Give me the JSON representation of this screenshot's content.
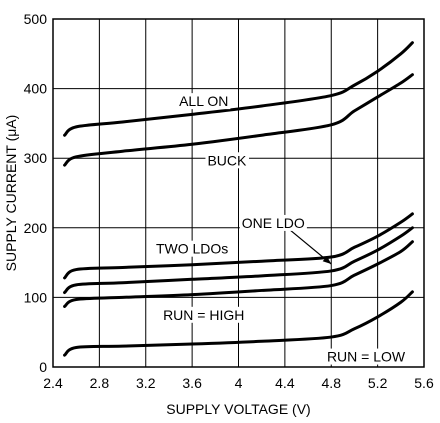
{
  "chart_data": {
    "type": "line",
    "title": "",
    "xlabel": "SUPPLY VOLTAGE (V)",
    "ylabel": "SUPPLY CURRENT (μA)",
    "xlim": [
      2.4,
      5.6
    ],
    "ylim": [
      0,
      500
    ],
    "xticks": [
      "2.4",
      "2.8",
      "3.2",
      "3.6",
      "4",
      "4.4",
      "4.8",
      "5.2",
      "5.6"
    ],
    "yticks": [
      "0",
      "100",
      "200",
      "300",
      "400",
      "500"
    ],
    "grid": true,
    "series": [
      {
        "name": "ALL ON",
        "x": [
          2.5,
          2.6,
          3.0,
          3.6,
          4.2,
          4.8,
          5.0,
          5.2,
          5.4,
          5.5
        ],
        "y": [
          333,
          345,
          352,
          363,
          375,
          390,
          405,
          425,
          450,
          466
        ]
      },
      {
        "name": "BUCK",
        "x": [
          2.5,
          2.6,
          3.0,
          3.6,
          4.2,
          4.8,
          5.0,
          5.2,
          5.4,
          5.5
        ],
        "y": [
          290,
          302,
          310,
          320,
          333,
          348,
          368,
          388,
          408,
          420
        ]
      },
      {
        "name": "ONE LDO",
        "x": [
          2.5,
          2.6,
          3.0,
          3.6,
          4.2,
          4.8,
          5.0,
          5.2,
          5.4,
          5.5
        ],
        "y": [
          128,
          140,
          143,
          147,
          152,
          158,
          172,
          188,
          208,
          220
        ]
      },
      {
        "name": "TWO LDOs",
        "x": [
          2.5,
          2.6,
          3.0,
          3.6,
          4.2,
          4.8,
          5.0,
          5.2,
          5.4,
          5.5
        ],
        "y": [
          107,
          118,
          121,
          126,
          131,
          138,
          152,
          168,
          188,
          200
        ]
      },
      {
        "name": "RUN = HIGH",
        "x": [
          2.5,
          2.6,
          3.0,
          3.6,
          4.2,
          4.8,
          5.0,
          5.2,
          5.4,
          5.5
        ],
        "y": [
          87,
          97,
          100,
          104,
          110,
          117,
          132,
          148,
          166,
          180
        ]
      },
      {
        "name": "RUN = LOW",
        "x": [
          2.5,
          2.6,
          3.0,
          3.6,
          4.2,
          4.8,
          5.0,
          5.2,
          5.4,
          5.5
        ],
        "y": [
          17,
          28,
          30,
          33,
          37,
          43,
          55,
          72,
          93,
          108
        ]
      }
    ],
    "annotations": [
      {
        "text": "ALL ON",
        "x": 3.7,
        "y": 382
      },
      {
        "text": "BUCK",
        "x": 3.9,
        "y": 297
      },
      {
        "text": "ONE LDO",
        "x": 4.3,
        "y": 207
      },
      {
        "text": "TWO LDOs",
        "x": 3.6,
        "y": 170
      },
      {
        "text": "RUN = HIGH",
        "x": 3.7,
        "y": 75
      },
      {
        "text": "RUN = LOW",
        "x": 5.1,
        "y": 15
      }
    ],
    "leaders": [
      {
        "from": [
          4.4,
          203
        ],
        "to": [
          4.8,
          148
        ]
      }
    ],
    "colors": {
      "line": "#000000",
      "grid": "#000000",
      "background": "#ffffff"
    }
  }
}
